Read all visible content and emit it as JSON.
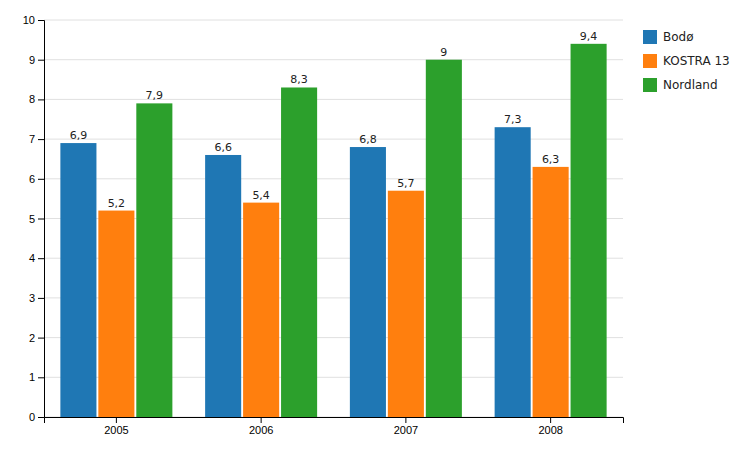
{
  "chart_data": {
    "type": "bar",
    "categories": [
      "2005",
      "2006",
      "2007",
      "2008"
    ],
    "series": [
      {
        "name": "Bodø",
        "values": [
          6.9,
          6.6,
          6.8,
          7.3
        ],
        "value_labels": [
          "6,9",
          "6,6",
          "6,8",
          "7,3"
        ]
      },
      {
        "name": "KOSTRA 13",
        "values": [
          5.2,
          5.4,
          5.7,
          6.3
        ],
        "value_labels": [
          "5,2",
          "5,4",
          "5,7",
          "6,3"
        ]
      },
      {
        "name": "Nordland",
        "values": [
          7.9,
          8.3,
          9.0,
          9.4
        ],
        "value_labels": [
          "7,9",
          "8,3",
          "9",
          "9,4"
        ]
      }
    ],
    "ylim": [
      0,
      10
    ],
    "yticks": [
      0,
      1,
      2,
      3,
      4,
      5,
      6,
      7,
      8,
      9,
      10
    ],
    "grid": true,
    "legend": "right",
    "data_labels": true
  }
}
